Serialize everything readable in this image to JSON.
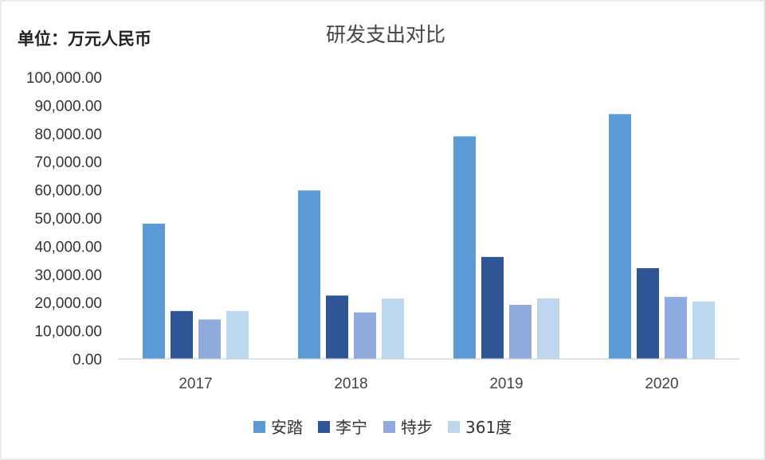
{
  "chart_data": {
    "type": "bar",
    "title": "研发支出对比",
    "unit_label": "单位：万元人民币",
    "categories": [
      "2017",
      "2018",
      "2019",
      "2020"
    ],
    "series": [
      {
        "name": "安踏",
        "color": "#5B9BD5",
        "values": [
          48000,
          59800,
          79000,
          86900
        ]
      },
      {
        "name": "李宁",
        "color": "#2F5597",
        "values": [
          17000,
          22500,
          36200,
          32200
        ]
      },
      {
        "name": "特步",
        "color": "#8FAADC",
        "values": [
          14000,
          16500,
          19200,
          22000
        ]
      },
      {
        "name": "361度",
        "color": "#BDD7EE",
        "values": [
          17000,
          21400,
          21500,
          20400
        ]
      }
    ],
    "ylim": [
      0,
      100000
    ],
    "y_ticks": [
      0,
      10000,
      20000,
      30000,
      40000,
      50000,
      60000,
      70000,
      80000,
      90000,
      100000
    ],
    "y_tick_labels": [
      "0.00",
      "10,000.00",
      "20,000.00",
      "30,000.00",
      "40,000.00",
      "50,000.00",
      "60,000.00",
      "70,000.00",
      "80,000.00",
      "90,000.00",
      "100,000.00"
    ],
    "grid": false,
    "legend_position": "bottom"
  }
}
